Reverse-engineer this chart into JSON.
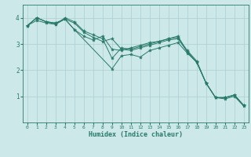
{
  "xlabel": "Humidex (Indice chaleur)",
  "ylabel": "",
  "xlim": [
    -0.5,
    23.5
  ],
  "ylim": [
    0,
    4.5
  ],
  "xticks": [
    0,
    1,
    2,
    3,
    4,
    5,
    6,
    7,
    8,
    9,
    10,
    11,
    12,
    13,
    14,
    15,
    16,
    17,
    18,
    19,
    20,
    21,
    22,
    23
  ],
  "yticks": [
    1,
    2,
    3,
    4
  ],
  "background_color": "#cce8e8",
  "grid_color": "#aacfcf",
  "line_color": "#2a7a6a",
  "lines": [
    {
      "x": [
        0,
        1,
        2,
        3,
        4,
        5,
        6,
        7,
        8,
        9,
        10,
        11,
        12,
        13,
        14,
        15,
        16,
        17,
        18,
        19,
        20,
        21,
        22,
        23
      ],
      "y": [
        3.7,
        4.0,
        3.85,
        3.8,
        3.95,
        3.55,
        3.3,
        3.15,
        3.3,
        2.8,
        2.75,
        2.85,
        2.95,
        3.05,
        3.1,
        3.2,
        3.3,
        2.7,
        2.3,
        1.5,
        0.95,
        0.95,
        1.05,
        0.65
      ]
    },
    {
      "x": [
        0,
        1,
        2,
        3,
        4,
        5,
        9,
        10,
        11,
        12,
        13,
        14,
        15,
        16,
        17,
        18,
        19,
        20,
        21,
        22,
        23
      ],
      "y": [
        3.7,
        4.0,
        3.85,
        3.8,
        3.95,
        3.55,
        2.05,
        2.55,
        2.6,
        2.5,
        2.75,
        2.85,
        2.95,
        3.05,
        2.65,
        2.3,
        1.5,
        0.95,
        0.95,
        1.05,
        0.65
      ]
    },
    {
      "x": [
        0,
        1,
        2,
        3,
        4,
        5,
        6,
        7,
        8,
        9,
        10,
        11,
        12,
        13,
        14,
        15,
        16,
        17,
        18,
        19,
        20,
        21,
        22,
        23
      ],
      "y": [
        3.7,
        4.0,
        3.85,
        3.75,
        4.0,
        3.85,
        3.5,
        3.35,
        3.2,
        2.45,
        2.85,
        2.8,
        2.9,
        3.0,
        3.1,
        3.2,
        3.25,
        2.75,
        2.35,
        1.5,
        0.95,
        0.95,
        1.05,
        0.65
      ]
    },
    {
      "x": [
        0,
        1,
        2,
        3,
        4,
        5,
        6,
        7,
        8,
        9,
        10,
        11,
        12,
        13,
        14,
        15,
        16,
        17,
        18,
        19,
        20,
        21,
        22,
        23
      ],
      "y": [
        3.7,
        3.9,
        3.8,
        3.75,
        3.95,
        3.8,
        3.45,
        3.25,
        3.1,
        3.2,
        2.8,
        2.75,
        2.85,
        2.95,
        3.05,
        3.15,
        3.2,
        2.7,
        2.3,
        1.5,
        0.95,
        0.9,
        1.0,
        0.62
      ]
    }
  ],
  "figsize": [
    3.2,
    2.0
  ],
  "dpi": 100
}
